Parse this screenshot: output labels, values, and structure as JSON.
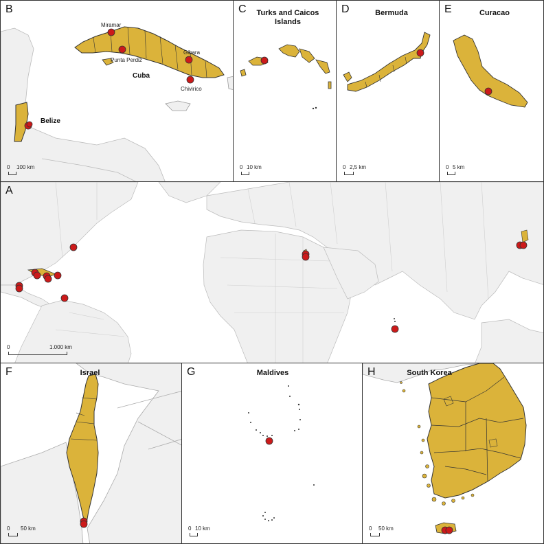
{
  "colors": {
    "country_fill": "#dbb33a",
    "land_gray": "#f0f0f0",
    "sea": "#ffffff",
    "point": "#cc1a1a",
    "outline": "#333333"
  },
  "panels": {
    "B": {
      "letter": "B",
      "labels": {
        "miramar": "Miramar",
        "punta_perdiz": "Punta Perdiz",
        "gibara": "Gibara",
        "chivirico": "Chivirico",
        "cuba": "Cuba",
        "belize": "Belize"
      },
      "scale": {
        "zero": "0",
        "dist": "100 km"
      }
    },
    "C": {
      "letter": "C",
      "title": "Turks and Caicos\nIslands",
      "scale": {
        "zero": "0",
        "dist": "10 km"
      }
    },
    "D": {
      "letter": "D",
      "title": "Bermuda",
      "scale": {
        "zero": "0",
        "dist": "2,5 km"
      }
    },
    "E": {
      "letter": "E",
      "title": "Curacao",
      "scale": {
        "zero": "0",
        "dist": "5 km"
      }
    },
    "A": {
      "letter": "A",
      "scale": {
        "zero": "0",
        "dist": "1.000 km"
      }
    },
    "F": {
      "letter": "F",
      "title": "Israel",
      "scale": {
        "zero": "0",
        "dist": "50 km"
      }
    },
    "G": {
      "letter": "G",
      "title": "Maldives",
      "scale": {
        "zero": "0",
        "dist": "10 km"
      }
    },
    "H": {
      "letter": "H",
      "title": "South Korea",
      "scale": {
        "zero": "0",
        "dist": "50 km"
      }
    }
  }
}
